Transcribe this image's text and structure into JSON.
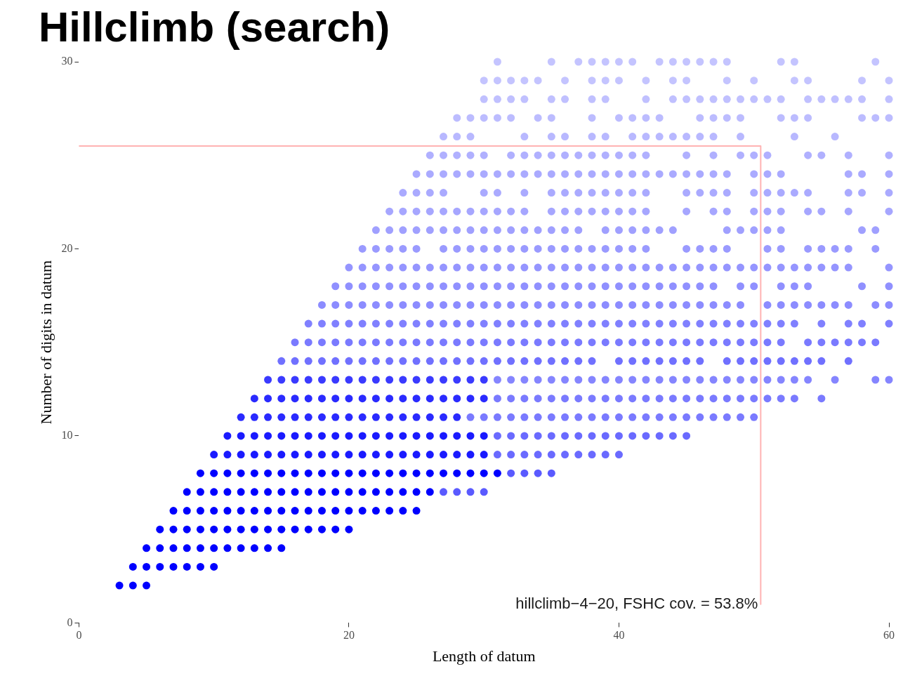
{
  "chart_data": {
    "type": "scatter",
    "title": "Hillclimb (search)",
    "xlabel": "Length of datum",
    "ylabel": "Number of digits in datum",
    "xlim": [
      0,
      60
    ],
    "ylim": [
      0,
      30
    ],
    "xticks": [
      0,
      20,
      40,
      60
    ],
    "yticks": [
      0,
      10,
      20,
      30
    ],
    "marker": "circle",
    "annotations": [
      {
        "text": "hillclimb−4−20, FSHC cov. = 53.8%",
        "x": 50.5,
        "y": 1
      }
    ],
    "series": [
      {
        "color": "#0000ff",
        "x": [
          3,
          4,
          5
        ],
        "values": [
          2,
          2,
          2
        ]
      },
      {
        "color": "#0000ff",
        "x": [
          4,
          5,
          6,
          7,
          8,
          9,
          10
        ],
        "values": [
          3,
          3,
          3,
          3,
          3,
          3,
          3
        ]
      },
      {
        "color": "#0000ff",
        "x": [
          5,
          6,
          7,
          8,
          9,
          10,
          11,
          12,
          13,
          14,
          15
        ],
        "values": [
          4,
          4,
          4,
          4,
          4,
          4,
          4,
          4,
          4,
          4,
          4
        ]
      },
      {
        "color": "#0000ff",
        "x": [
          6,
          7,
          8,
          9,
          10,
          11,
          12,
          13,
          14,
          15,
          16,
          17,
          18,
          19,
          20
        ],
        "values": [
          5,
          5,
          5,
          5,
          5,
          5,
          5,
          5,
          5,
          5,
          5,
          5,
          5,
          5,
          5
        ]
      },
      {
        "color": "#0000ff",
        "x": [
          7,
          8,
          9,
          10,
          11,
          12,
          13,
          14,
          15,
          16,
          17,
          18,
          19,
          20,
          21,
          22,
          23,
          24,
          25
        ],
        "values": [
          6,
          6,
          6,
          6,
          6,
          6,
          6,
          6,
          6,
          6,
          6,
          6,
          6,
          6,
          6,
          6,
          6,
          6,
          6
        ]
      },
      {
        "color": "#0000ff",
        "x": [
          8,
          9,
          10,
          11,
          12,
          13,
          14,
          15,
          16,
          17,
          18,
          19,
          20,
          21,
          22,
          23,
          24,
          25,
          26
        ],
        "values": [
          7,
          7,
          7,
          7,
          7,
          7,
          7,
          7,
          7,
          7,
          7,
          7,
          7,
          7,
          7,
          7,
          7,
          7,
          7
        ]
      },
      {
        "color": "#5a5aff",
        "x": [
          27,
          28,
          29,
          30
        ],
        "values": [
          7,
          7,
          7,
          7
        ]
      },
      {
        "color": "#0000ff",
        "x": [
          9,
          10,
          11,
          12,
          13,
          14,
          15,
          16,
          17,
          18,
          19,
          20,
          21,
          22,
          23,
          24,
          25,
          26,
          27,
          28,
          29,
          30,
          31
        ],
        "values": [
          8,
          8,
          8,
          8,
          8,
          8,
          8,
          8,
          8,
          8,
          8,
          8,
          8,
          8,
          8,
          8,
          8,
          8,
          8,
          8,
          8,
          8,
          8
        ]
      },
      {
        "color": "#5a5aff",
        "x": [
          32,
          33,
          34,
          35
        ],
        "values": [
          8,
          8,
          8,
          8
        ]
      },
      {
        "color": "#1a1aff",
        "x": [
          10,
          11,
          12,
          13,
          14,
          15,
          16,
          17,
          18,
          19,
          20,
          21,
          22,
          23,
          24,
          25,
          26,
          27,
          28,
          29,
          30
        ],
        "values": [
          9,
          9,
          9,
          9,
          9,
          9,
          9,
          9,
          9,
          9,
          9,
          9,
          9,
          9,
          9,
          9,
          9,
          9,
          9,
          9,
          9
        ]
      },
      {
        "color": "#6a6aff",
        "x": [
          31,
          32,
          33,
          34,
          35,
          36,
          37,
          38,
          39,
          40
        ],
        "values": [
          9,
          9,
          9,
          9,
          9,
          9,
          9,
          9,
          9,
          9
        ]
      },
      {
        "color": "#1a1aff",
        "x": [
          11,
          12,
          13,
          14,
          15,
          16,
          17,
          18,
          19,
          20,
          21,
          22,
          23,
          24,
          25,
          26,
          27,
          28,
          29,
          30
        ],
        "values": [
          10,
          10,
          10,
          10,
          10,
          10,
          10,
          10,
          10,
          10,
          10,
          10,
          10,
          10,
          10,
          10,
          10,
          10,
          10,
          10
        ]
      },
      {
        "color": "#6a6aff",
        "x": [
          31,
          32,
          33,
          34,
          35,
          36,
          37,
          38,
          39,
          40,
          41,
          42,
          43,
          44,
          45
        ],
        "values": [
          10,
          10,
          10,
          10,
          10,
          10,
          10,
          10,
          10,
          10,
          10,
          10,
          10,
          10,
          10
        ]
      },
      {
        "color": "#2a2aff",
        "x": [
          12,
          13,
          14,
          15,
          16,
          17,
          18,
          19,
          20,
          21,
          22,
          23,
          24,
          25,
          26,
          27,
          28
        ],
        "values": [
          11,
          11,
          11,
          11,
          11,
          11,
          11,
          11,
          11,
          11,
          11,
          11,
          11,
          11,
          11,
          11,
          11
        ]
      },
      {
        "color": "#7a7aff",
        "x": [
          29,
          30,
          31,
          32,
          33,
          34,
          35,
          36,
          37,
          38,
          39,
          40,
          41,
          42,
          43,
          44,
          45,
          46,
          47,
          48,
          49,
          50
        ],
        "values": [
          11,
          11,
          11,
          11,
          11,
          11,
          11,
          11,
          11,
          11,
          11,
          11,
          11,
          11,
          11,
          11,
          11,
          11,
          11,
          11,
          11,
          11
        ]
      },
      {
        "color": "#2a2aff",
        "x": [
          13,
          14,
          15,
          16,
          17,
          18,
          19,
          20,
          21,
          22,
          23,
          24,
          25,
          26,
          27,
          28,
          29,
          30
        ],
        "values": [
          12,
          12,
          12,
          12,
          12,
          12,
          12,
          12,
          12,
          12,
          12,
          12,
          12,
          12,
          12,
          12,
          12,
          12
        ]
      },
      {
        "color": "#7a7aff",
        "x": [
          31,
          32,
          33,
          34,
          35,
          36,
          37,
          38,
          39,
          40,
          41,
          42,
          43,
          44,
          45,
          46,
          47,
          48,
          49,
          50,
          51,
          52,
          53,
          55
        ],
        "values": [
          12,
          12,
          12,
          12,
          12,
          12,
          12,
          12,
          12,
          12,
          12,
          12,
          12,
          12,
          12,
          12,
          12,
          12,
          12,
          12,
          12,
          12,
          12,
          12
        ]
      },
      {
        "color": "#3a3aff",
        "x": [
          14,
          15,
          16,
          17,
          18,
          19,
          20,
          21,
          22,
          23,
          24,
          25,
          26,
          27,
          28,
          29,
          30
        ],
        "values": [
          13,
          13,
          13,
          13,
          13,
          13,
          13,
          13,
          13,
          13,
          13,
          13,
          13,
          13,
          13,
          13,
          13
        ]
      },
      {
        "color": "#8585ff",
        "x": [
          31,
          32,
          33,
          34,
          35,
          36,
          37,
          38,
          39,
          40,
          41,
          42,
          43,
          44,
          45,
          46,
          47,
          48,
          49,
          50,
          51,
          52,
          53,
          54,
          56,
          59,
          60
        ],
        "values": [
          13,
          13,
          13,
          13,
          13,
          13,
          13,
          13,
          13,
          13,
          13,
          13,
          13,
          13,
          13,
          13,
          13,
          13,
          13,
          13,
          13,
          13,
          13,
          13,
          13,
          13,
          13
        ]
      },
      {
        "color": "#7070ff",
        "x": [
          15,
          16,
          17,
          18,
          19,
          20,
          21,
          22,
          23,
          24,
          25,
          26,
          27,
          28,
          29,
          30,
          31,
          32,
          33,
          34,
          35,
          36,
          37,
          38,
          40,
          41,
          42,
          43,
          44,
          45,
          46,
          48,
          49,
          50,
          51,
          52,
          53,
          54,
          55,
          57
        ],
        "values": [
          14,
          14,
          14,
          14,
          14,
          14,
          14,
          14,
          14,
          14,
          14,
          14,
          14,
          14,
          14,
          14,
          14,
          14,
          14,
          14,
          14,
          14,
          14,
          14,
          14,
          14,
          14,
          14,
          14,
          14,
          14,
          14,
          14,
          14,
          14,
          14,
          14,
          14,
          14,
          14
        ]
      },
      {
        "color": "#7a7aff",
        "x": [
          16,
          17,
          18,
          19,
          20,
          21,
          22,
          23,
          24,
          25,
          26,
          27,
          28,
          29,
          30,
          31,
          32,
          33,
          34,
          35,
          36,
          37,
          38,
          39,
          40,
          41,
          42,
          43,
          44,
          45,
          46,
          47,
          48,
          49,
          50,
          51,
          52,
          54,
          55,
          56,
          57,
          58,
          59
        ],
        "values": [
          15,
          15,
          15,
          15,
          15,
          15,
          15,
          15,
          15,
          15,
          15,
          15,
          15,
          15,
          15,
          15,
          15,
          15,
          15,
          15,
          15,
          15,
          15,
          15,
          15,
          15,
          15,
          15,
          15,
          15,
          15,
          15,
          15,
          15,
          15,
          15,
          15,
          15,
          15,
          15,
          15,
          15,
          15
        ]
      },
      {
        "color": "#8080ff",
        "x": [
          17,
          18,
          19,
          20,
          21,
          22,
          23,
          24,
          25,
          26,
          27,
          28,
          29,
          30,
          31,
          32,
          33,
          34,
          35,
          36,
          37,
          38,
          39,
          40,
          41,
          42,
          43,
          44,
          45,
          46,
          47,
          48,
          49,
          50,
          51,
          52,
          53,
          55,
          57,
          58,
          60
        ],
        "values": [
          16,
          16,
          16,
          16,
          16,
          16,
          16,
          16,
          16,
          16,
          16,
          16,
          16,
          16,
          16,
          16,
          16,
          16,
          16,
          16,
          16,
          16,
          16,
          16,
          16,
          16,
          16,
          16,
          16,
          16,
          16,
          16,
          16,
          16,
          16,
          16,
          16,
          16,
          16,
          16,
          16
        ]
      },
      {
        "color": "#8c8cff",
        "x": [
          18,
          19,
          20,
          21,
          22,
          23,
          24,
          25,
          26,
          27,
          28,
          29,
          30,
          31,
          32,
          33,
          34,
          35,
          36,
          37,
          38,
          39,
          40,
          41,
          42,
          43,
          44,
          45,
          46,
          47,
          48,
          49,
          51,
          52,
          53,
          54,
          55,
          56,
          57,
          59,
          60
        ],
        "values": [
          17,
          17,
          17,
          17,
          17,
          17,
          17,
          17,
          17,
          17,
          17,
          17,
          17,
          17,
          17,
          17,
          17,
          17,
          17,
          17,
          17,
          17,
          17,
          17,
          17,
          17,
          17,
          17,
          17,
          17,
          17,
          17,
          17,
          17,
          17,
          17,
          17,
          17,
          17,
          17,
          17
        ]
      },
      {
        "color": "#9090ff",
        "x": [
          19,
          20,
          21,
          22,
          23,
          24,
          25,
          26,
          27,
          28,
          29,
          30,
          31,
          32,
          33,
          34,
          35,
          36,
          37,
          38,
          39,
          40,
          41,
          42,
          43,
          44,
          45,
          46,
          47,
          49,
          50,
          52,
          53,
          54,
          58,
          60
        ],
        "values": [
          18,
          18,
          18,
          18,
          18,
          18,
          18,
          18,
          18,
          18,
          18,
          18,
          18,
          18,
          18,
          18,
          18,
          18,
          18,
          18,
          18,
          18,
          18,
          18,
          18,
          18,
          18,
          18,
          18,
          18,
          18,
          18,
          18,
          18,
          18,
          18
        ]
      },
      {
        "color": "#9595ff",
        "x": [
          20,
          21,
          22,
          23,
          24,
          25,
          26,
          27,
          28,
          29,
          30,
          31,
          32,
          33,
          34,
          35,
          36,
          37,
          38,
          39,
          40,
          41,
          42,
          43,
          44,
          45,
          46,
          47,
          48,
          49,
          50,
          51,
          52,
          53,
          54,
          55,
          56,
          57,
          60
        ],
        "values": [
          19,
          19,
          19,
          19,
          19,
          19,
          19,
          19,
          19,
          19,
          19,
          19,
          19,
          19,
          19,
          19,
          19,
          19,
          19,
          19,
          19,
          19,
          19,
          19,
          19,
          19,
          19,
          19,
          19,
          19,
          19,
          19,
          19,
          19,
          19,
          19,
          19,
          19,
          19
        ]
      },
      {
        "color": "#9a9aff",
        "x": [
          21,
          22,
          23,
          24,
          25,
          27,
          28,
          29,
          30,
          31,
          32,
          33,
          34,
          35,
          36,
          37,
          38,
          39,
          40,
          41,
          42,
          45,
          46,
          47,
          48,
          51,
          52,
          54,
          55,
          56,
          57,
          59
        ],
        "values": [
          20,
          20,
          20,
          20,
          20,
          20,
          20,
          20,
          20,
          20,
          20,
          20,
          20,
          20,
          20,
          20,
          20,
          20,
          20,
          20,
          20,
          20,
          20,
          20,
          20,
          20,
          20,
          20,
          20,
          20,
          20,
          20
        ]
      },
      {
        "color": "#a0a0ff",
        "x": [
          22,
          23,
          24,
          25,
          26,
          27,
          28,
          29,
          30,
          31,
          32,
          33,
          34,
          35,
          36,
          37,
          39,
          40,
          41,
          42,
          43,
          44,
          48,
          49,
          50,
          51,
          52,
          58,
          59
        ],
        "values": [
          21,
          21,
          21,
          21,
          21,
          21,
          21,
          21,
          21,
          21,
          21,
          21,
          21,
          21,
          21,
          21,
          21,
          21,
          21,
          21,
          21,
          21,
          21,
          21,
          21,
          21,
          21,
          21,
          21
        ]
      },
      {
        "color": "#a6a6ff",
        "x": [
          23,
          24,
          25,
          26,
          27,
          28,
          29,
          30,
          31,
          32,
          33,
          35,
          36,
          37,
          38,
          39,
          40,
          41,
          42,
          45,
          47,
          48,
          50,
          51,
          52,
          54,
          55,
          57,
          60
        ],
        "values": [
          22,
          22,
          22,
          22,
          22,
          22,
          22,
          22,
          22,
          22,
          22,
          22,
          22,
          22,
          22,
          22,
          22,
          22,
          22,
          22,
          22,
          22,
          22,
          22,
          22,
          22,
          22,
          22,
          22
        ]
      },
      {
        "color": "#aaaaff",
        "x": [
          24,
          25,
          26,
          27,
          30,
          31,
          33,
          35,
          36,
          37,
          38,
          39,
          40,
          41,
          42,
          45,
          46,
          47,
          48,
          50,
          51,
          52,
          53,
          54,
          57,
          58,
          60
        ],
        "values": [
          23,
          23,
          23,
          23,
          23,
          23,
          23,
          23,
          23,
          23,
          23,
          23,
          23,
          23,
          23,
          23,
          23,
          23,
          23,
          23,
          23,
          23,
          23,
          23,
          23,
          23,
          23
        ]
      },
      {
        "color": "#aaaaff",
        "x": [
          25,
          26,
          27,
          28,
          29,
          30,
          31,
          32,
          33,
          34,
          35,
          36,
          37,
          38,
          39,
          40,
          41,
          42,
          43,
          44,
          45,
          46,
          47,
          48,
          50,
          51,
          52,
          57,
          58,
          60
        ],
        "values": [
          24,
          24,
          24,
          24,
          24,
          24,
          24,
          24,
          24,
          24,
          24,
          24,
          24,
          24,
          24,
          24,
          24,
          24,
          24,
          24,
          24,
          24,
          24,
          24,
          24,
          24,
          24,
          24,
          24,
          24
        ]
      },
      {
        "color": "#b0b0ff",
        "x": [
          26,
          27,
          28,
          29,
          30,
          32,
          33,
          34,
          35,
          36,
          37,
          38,
          39,
          40,
          41,
          42,
          45,
          47,
          49,
          50,
          51,
          54,
          55,
          57,
          60
        ],
        "values": [
          25,
          25,
          25,
          25,
          25,
          25,
          25,
          25,
          25,
          25,
          25,
          25,
          25,
          25,
          25,
          25,
          25,
          25,
          25,
          25,
          25,
          25,
          25,
          25,
          25
        ]
      },
      {
        "color": "#b8b8ff",
        "x": [
          27,
          28,
          29,
          33,
          35,
          36,
          38,
          39,
          41,
          42,
          43,
          44,
          45,
          46,
          47,
          49,
          53,
          56
        ],
        "values": [
          26,
          26,
          26,
          26,
          26,
          26,
          26,
          26,
          26,
          26,
          26,
          26,
          26,
          26,
          26,
          26,
          26,
          26
        ]
      },
      {
        "color": "#bcbcff",
        "x": [
          28,
          29,
          30,
          31,
          32,
          34,
          35,
          38,
          40,
          41,
          42,
          43,
          46,
          47,
          48,
          49,
          52,
          53,
          54,
          58,
          59,
          60
        ],
        "values": [
          27,
          27,
          27,
          27,
          27,
          27,
          27,
          27,
          27,
          27,
          27,
          27,
          27,
          27,
          27,
          27,
          27,
          27,
          27,
          27,
          27,
          27
        ]
      },
      {
        "color": "#c0c0ff",
        "x": [
          30,
          31,
          32,
          33,
          35,
          36,
          38,
          39,
          42,
          44,
          45,
          46,
          47,
          48,
          49,
          50,
          51,
          52,
          54,
          55,
          56,
          57,
          58,
          60
        ],
        "values": [
          28,
          28,
          28,
          28,
          28,
          28,
          28,
          28,
          28,
          28,
          28,
          28,
          28,
          28,
          28,
          28,
          28,
          28,
          28,
          28,
          28,
          28,
          28,
          28
        ]
      },
      {
        "color": "#c4c4ff",
        "x": [
          30,
          31,
          32,
          33,
          34,
          36,
          38,
          39,
          40,
          42,
          44,
          45,
          48,
          50,
          53,
          54,
          58,
          60
        ],
        "values": [
          29,
          29,
          29,
          29,
          29,
          29,
          29,
          29,
          29,
          29,
          29,
          29,
          29,
          29,
          29,
          29,
          29,
          29
        ]
      },
      {
        "color": "#c4c4ff",
        "x": [
          31,
          35,
          37,
          38,
          39,
          40,
          41,
          43,
          44,
          45,
          46,
          47,
          48,
          52,
          53,
          59
        ],
        "values": [
          30,
          30,
          30,
          30,
          30,
          30,
          30,
          30,
          30,
          30,
          30,
          30,
          30,
          30,
          30,
          30
        ]
      },
      {
        "type": "line",
        "color": "#ffb3b3",
        "marker": "none",
        "x": [
          0,
          50.5,
          50.5
        ],
        "values": [
          25.5,
          25.5,
          1
        ]
      }
    ]
  }
}
